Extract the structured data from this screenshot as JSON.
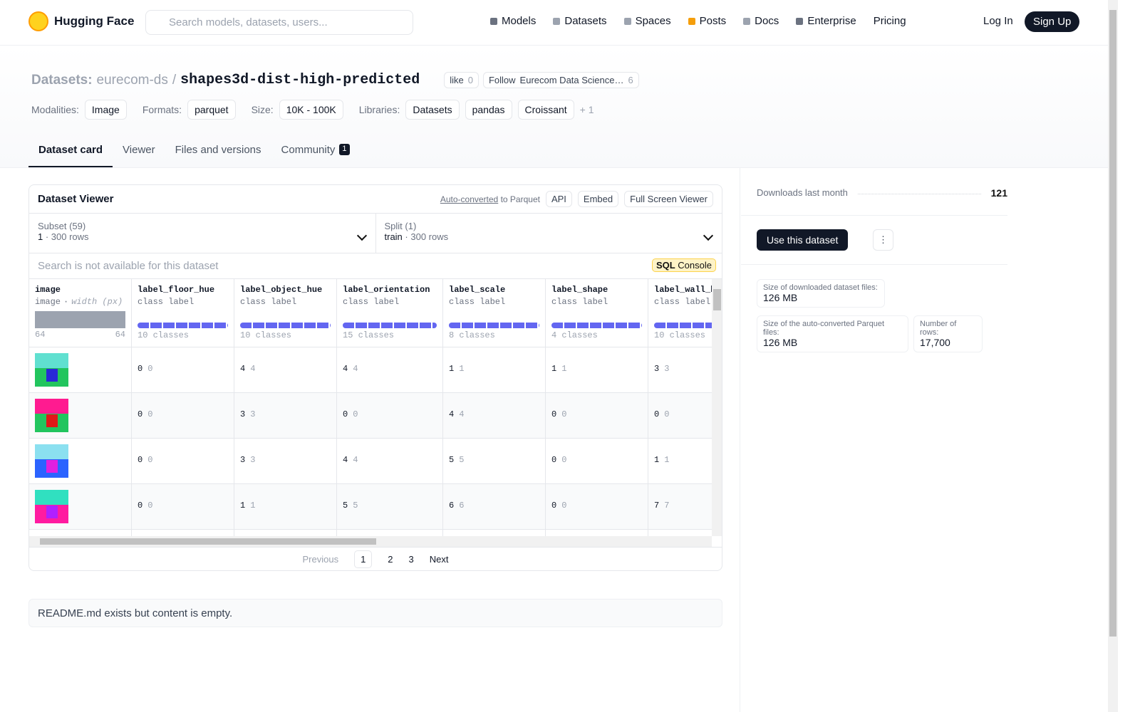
{
  "nav": {
    "brand": "Hugging Face",
    "search_placeholder": "Search models, datasets, users...",
    "links": [
      "Models",
      "Datasets",
      "Spaces",
      "Posts",
      "Docs",
      "Enterprise",
      "Pricing"
    ],
    "login": "Log In",
    "signup": "Sign Up"
  },
  "header": {
    "section": "Datasets:",
    "owner": "eurecom-ds",
    "separator": "/",
    "name": "shapes3d-dist-high-predicted",
    "like": "like",
    "likes": 0,
    "follow": "Follow",
    "org": "Eurecom Data Science…",
    "followers": 6
  },
  "tags": [
    {
      "label": "Modalities:",
      "items": [
        "Image"
      ]
    },
    {
      "label": "Formats:",
      "items": [
        "parquet"
      ]
    },
    {
      "label": "Size:",
      "items": [
        "10K - 100K"
      ]
    },
    {
      "label": "Libraries:",
      "items": [
        "Datasets",
        "pandas",
        "Croissant"
      ],
      "more": "+ 1"
    }
  ],
  "tabs": [
    "Dataset card",
    "Viewer",
    "Files and versions",
    "Community"
  ],
  "community_count": 1,
  "viewer": {
    "title": "Dataset Viewer",
    "auto_converted": "Auto-converted",
    "to_parquet": "to Parquet",
    "api": "API",
    "embed": "Embed",
    "fullscreen": "Full Screen Viewer",
    "subset_label": "Subset (59)",
    "subset": "1",
    "subset_rows": "300 rows",
    "split_label": "Split (1)",
    "split": "train",
    "split_rows": "300 rows",
    "search_notice": "Search is not available for this dataset",
    "sql": "SQL",
    "console": "Console",
    "image_column": {
      "name": "image",
      "type": "image",
      "stat": "width (px)",
      "min": 64,
      "max": 64
    },
    "columns": [
      {
        "name": "label_floor_hue",
        "type": "class label",
        "classes": "10 classes"
      },
      {
        "name": "label_object_hue",
        "type": "class label",
        "classes": "10 classes"
      },
      {
        "name": "label_orientation",
        "type": "class label",
        "classes": "15 classes"
      },
      {
        "name": "label_scale",
        "type": "class label",
        "classes": "8 classes"
      },
      {
        "name": "label_shape",
        "type": "class label",
        "classes": "4 classes"
      },
      {
        "name": "label_wall_hue",
        "type": "class label",
        "classes": "10 classes"
      }
    ],
    "rows": [
      [
        [
          0,
          0
        ],
        [
          4,
          4
        ],
        [
          4,
          4
        ],
        [
          1,
          1
        ],
        [
          1,
          1
        ],
        [
          3,
          3
        ]
      ],
      [
        [
          0,
          0
        ],
        [
          3,
          3
        ],
        [
          0,
          0
        ],
        [
          4,
          4
        ],
        [
          0,
          0
        ],
        [
          0,
          0
        ]
      ],
      [
        [
          0,
          0
        ],
        [
          3,
          3
        ],
        [
          4,
          4
        ],
        [
          5,
          5
        ],
        [
          0,
          0
        ],
        [
          1,
          1
        ]
      ],
      [
        [
          0,
          0
        ],
        [
          1,
          1
        ],
        [
          5,
          5
        ],
        [
          6,
          6
        ],
        [
          0,
          0
        ],
        [
          7,
          7
        ]
      ]
    ],
    "pager": {
      "previous": "Previous",
      "pages": [
        1,
        2,
        3
      ],
      "next": "Next"
    }
  },
  "readme": "README.md exists but content is empty.",
  "sidebar": {
    "downloads_label": "Downloads last month",
    "downloads": 121,
    "use_dataset": "Use this dataset",
    "size_label": "Size of downloaded dataset files:",
    "size": "126 MB",
    "parquet_label": "Size of the auto-converted Parquet files:",
    "parquet": "126 MB",
    "rows_label": "Number of rows:",
    "rows": "17,700"
  }
}
